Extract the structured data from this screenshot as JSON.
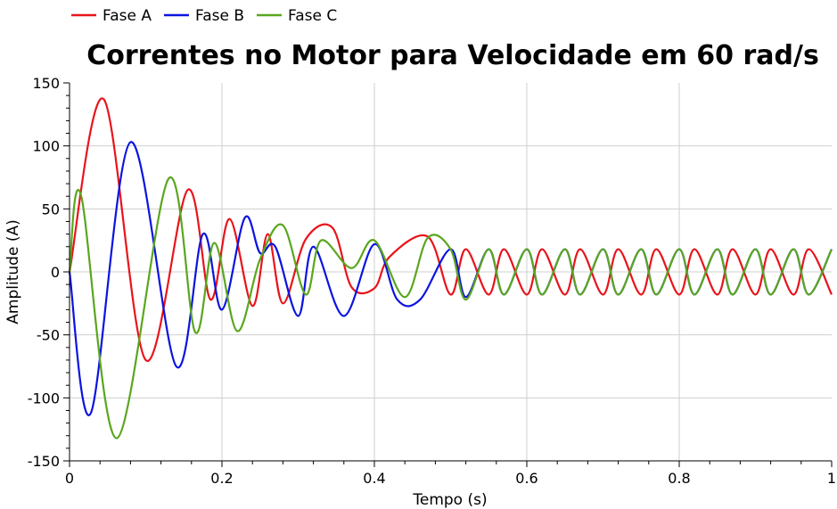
{
  "chart_data": {
    "type": "line",
    "title": "Correntes no Motor para Velocidade em 60 rad/s",
    "xlabel": "Tempo (s)",
    "ylabel": "Amplitude (A)",
    "xlim": [
      0,
      1
    ],
    "ylim": [
      -150,
      150
    ],
    "x_ticks": [
      "0",
      "0.2",
      "0.4",
      "0.6",
      "0.8",
      "1"
    ],
    "y_ticks": [
      "150",
      "100",
      "50",
      "0",
      "-50",
      "-100",
      "-150"
    ],
    "grid": true,
    "legend_position": "top-left",
    "series": [
      {
        "name": "Fase A",
        "color": "#e8141b",
        "x": [
          0.0,
          0.045,
          0.1,
          0.155,
          0.185,
          0.21,
          0.24,
          0.26,
          0.28,
          0.31,
          0.345,
          0.37,
          0.4,
          0.42,
          0.47,
          0.5,
          0.52,
          0.55,
          0.57,
          0.6,
          0.62,
          0.65,
          0.67,
          0.7,
          0.72,
          0.75,
          0.77,
          0.8,
          0.82,
          0.85,
          0.87,
          0.9,
          0.92,
          0.95,
          0.97,
          1.0
        ],
        "y": [
          0,
          137,
          -70,
          65,
          -22,
          42,
          -27,
          30,
          -25,
          26,
          35,
          -12,
          -13,
          12,
          28,
          -18,
          18,
          -18,
          18,
          -18,
          18,
          -18,
          18,
          -18,
          18,
          -18,
          18,
          -18,
          18,
          -18,
          18,
          -18,
          18,
          -18,
          18,
          -18
        ]
      },
      {
        "name": "Fase B",
        "color": "#0a14e0",
        "x": [
          0.0,
          0.028,
          0.08,
          0.14,
          0.175,
          0.2,
          0.23,
          0.25,
          0.27,
          0.3,
          0.32,
          0.36,
          0.4,
          0.43,
          0.46,
          0.5,
          0.52,
          0.55,
          0.57,
          0.6,
          0.62,
          0.65,
          0.67,
          0.7,
          0.72,
          0.75,
          0.77,
          0.8,
          0.82,
          0.85,
          0.87,
          0.9,
          0.92,
          0.95,
          0.97,
          1.0
        ],
        "y": [
          0,
          -112,
          103,
          -75,
          30,
          -30,
          43,
          15,
          20,
          -35,
          20,
          -35,
          22,
          -22,
          -22,
          18,
          -20,
          18,
          -18,
          18,
          -18,
          18,
          -18,
          18,
          -18,
          18,
          -18,
          18,
          -18,
          18,
          -18,
          18,
          -18,
          18,
          -18,
          18
        ]
      },
      {
        "name": "Fase C",
        "color": "#5aa61e",
        "x": [
          0.0,
          0.015,
          0.062,
          0.13,
          0.165,
          0.19,
          0.22,
          0.25,
          0.28,
          0.31,
          0.33,
          0.37,
          0.4,
          0.44,
          0.47,
          0.5,
          0.52,
          0.55,
          0.57,
          0.6,
          0.62,
          0.65,
          0.67,
          0.7,
          0.72,
          0.75,
          0.77,
          0.8,
          0.82,
          0.85,
          0.87,
          0.9,
          0.92,
          0.95,
          0.97,
          1.0
        ],
        "y": [
          0,
          61,
          -132,
          74,
          -48,
          23,
          -47,
          10,
          37,
          -18,
          25,
          3,
          25,
          -20,
          27,
          18,
          -22,
          18,
          -18,
          18,
          -18,
          18,
          -18,
          18,
          -18,
          18,
          -18,
          18,
          -18,
          18,
          -18,
          18,
          -18,
          18,
          -18,
          18
        ]
      }
    ]
  }
}
